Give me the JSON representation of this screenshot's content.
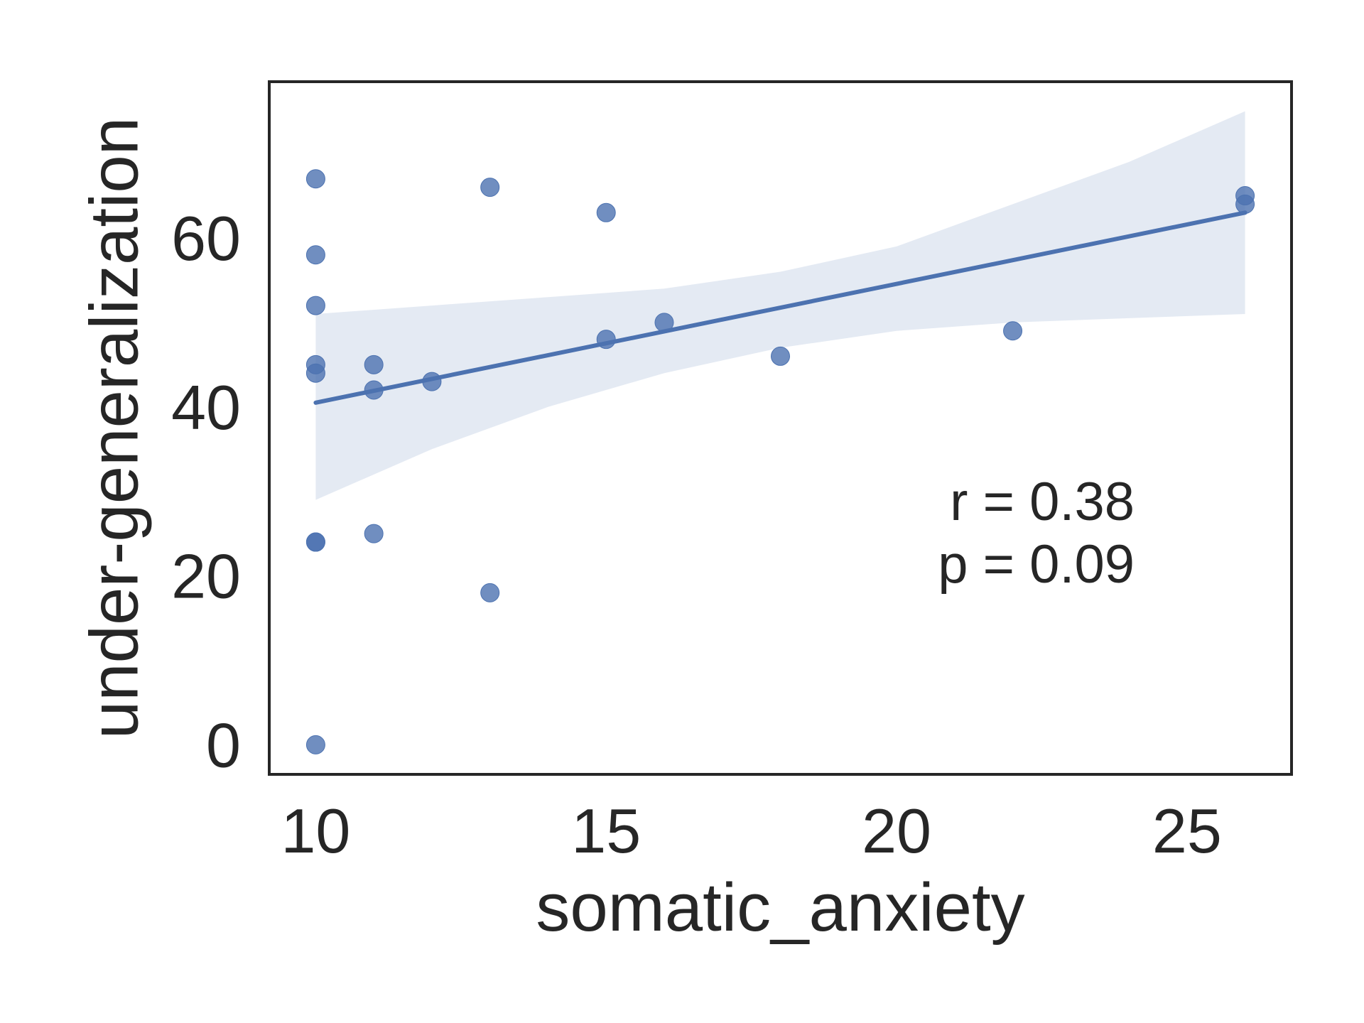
{
  "chart_data": {
    "type": "scatter",
    "title": "",
    "xlabel": "somatic_anxiety",
    "ylabel": "under-generalization",
    "xlim": [
      9.2,
      26.8
    ],
    "ylim": [
      -3.5,
      78.5
    ],
    "xticks": [
      10,
      15,
      20,
      25
    ],
    "yticks": [
      0,
      20,
      40,
      60
    ],
    "grid": false,
    "colors": {
      "points": "#4c72b0",
      "line": "#4c72b0",
      "band": "#4c72b0",
      "text": "#262626"
    },
    "points": [
      {
        "x": 10,
        "y": 67
      },
      {
        "x": 10,
        "y": 58
      },
      {
        "x": 10,
        "y": 52
      },
      {
        "x": 10,
        "y": 45
      },
      {
        "x": 10,
        "y": 44
      },
      {
        "x": 10,
        "y": 24
      },
      {
        "x": 10,
        "y": 24
      },
      {
        "x": 10,
        "y": 0
      },
      {
        "x": 11,
        "y": 45
      },
      {
        "x": 11,
        "y": 42
      },
      {
        "x": 11,
        "y": 25
      },
      {
        "x": 12,
        "y": 43
      },
      {
        "x": 13,
        "y": 66
      },
      {
        "x": 13,
        "y": 18
      },
      {
        "x": 15,
        "y": 63
      },
      {
        "x": 15,
        "y": 48
      },
      {
        "x": 16,
        "y": 50
      },
      {
        "x": 18,
        "y": 46
      },
      {
        "x": 22,
        "y": 49
      },
      {
        "x": 26,
        "y": 65
      },
      {
        "x": 26,
        "y": 64
      }
    ],
    "regression": {
      "line": [
        {
          "x": 10,
          "y": 40.5
        },
        {
          "x": 26,
          "y": 63
        }
      ],
      "ci_upper": [
        {
          "x": 10,
          "y": 51
        },
        {
          "x": 12,
          "y": 52
        },
        {
          "x": 14,
          "y": 53
        },
        {
          "x": 16,
          "y": 54
        },
        {
          "x": 18,
          "y": 56
        },
        {
          "x": 20,
          "y": 59
        },
        {
          "x": 22,
          "y": 64
        },
        {
          "x": 24,
          "y": 69
        },
        {
          "x": 26,
          "y": 75
        }
      ],
      "ci_lower": [
        {
          "x": 10,
          "y": 29
        },
        {
          "x": 12,
          "y": 35
        },
        {
          "x": 14,
          "y": 40
        },
        {
          "x": 16,
          "y": 44
        },
        {
          "x": 18,
          "y": 47
        },
        {
          "x": 20,
          "y": 49
        },
        {
          "x": 22,
          "y": 50
        },
        {
          "x": 24,
          "y": 50.5
        },
        {
          "x": 26,
          "y": 51
        }
      ]
    },
    "annotations": [
      "r = 0.38",
      "p = 0.09"
    ]
  }
}
